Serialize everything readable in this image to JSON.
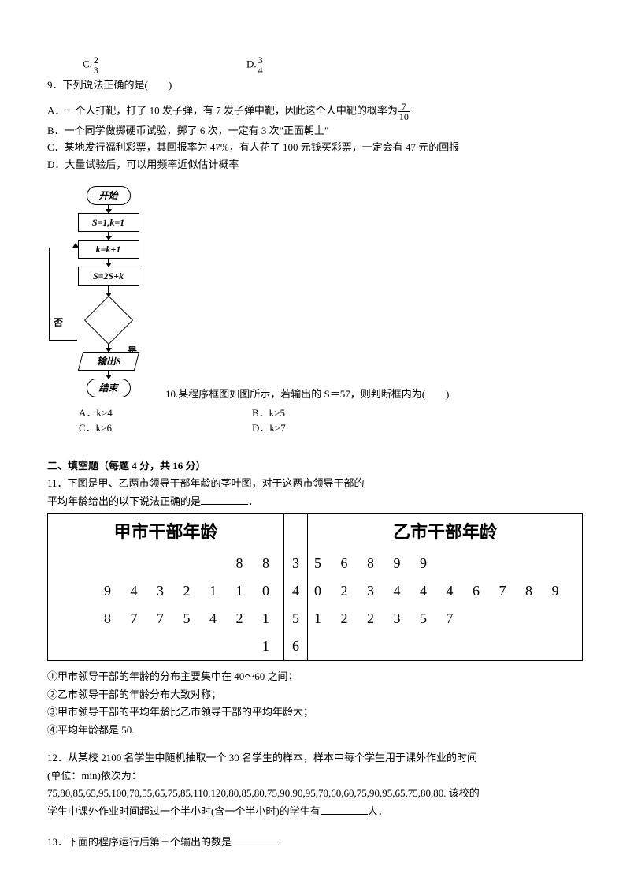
{
  "q8": {
    "opt_c_prefix": "C.",
    "opt_c_num": "2",
    "opt_c_den": "3",
    "opt_d_prefix": "D.",
    "opt_d_num": "3",
    "opt_d_den": "4"
  },
  "q9": {
    "stem": "9．下列说法正确的是(　　)",
    "a_prefix": "A．",
    "a_text1": "一个人打靶，打了 10 发子弹，有 7 发子弹中靶，因此这个人中靶的概率为",
    "a_num": "7",
    "a_den": "10",
    "b": "B．一个同学做掷硬币试验，掷了 6 次，一定有 3 次\"正面朝上\"",
    "c": "C．某地发行福利彩票，其回报率为 47%，有人花了 100 元钱买彩票，一定会有 47 元的回报",
    "d": "D．大量试验后，可以用频率近似估计概率"
  },
  "flowchart": {
    "start": "开始",
    "init": "S=1,k=1",
    "step1": "k=k+1",
    "step2": "S=2S+k",
    "no": "否",
    "yes": "是",
    "output": "输出S",
    "end": "结束"
  },
  "q10": {
    "stem": "10.某程序框图如图所示，若输出的 S＝57，则判断框内为(　　)",
    "a": "A．k>4",
    "b": "B．k>5",
    "c": "C．k>6",
    "d": "D．k>7"
  },
  "section2": "二、填空题（每题 4 分，共 16 分）",
  "q11": {
    "line1": "11．下图是甲、乙两市领导干部年龄的茎叶图，对于这两市领导干部的",
    "line2_pre": "平均年龄给出的以下说法正确的是",
    "line2_post": "．",
    "hdr_left": "甲市干部年龄",
    "hdr_right": "乙市干部年龄",
    "rows": [
      {
        "left": "8 8",
        "stem": "3",
        "right": "5 6 8 9 9"
      },
      {
        "left": "9 4 3 2 1 1 0",
        "stem": "4",
        "right": "0 2 3 4 4 4 6 7 8 9"
      },
      {
        "left": "8 7 7 5 4 2 1",
        "stem": "5",
        "right": "1 2 2 3 5 7"
      },
      {
        "left": "1",
        "stem": "6",
        "right": ""
      }
    ],
    "s1": "①甲市领导干部的年龄的分布主要集中在 40～60 之间；",
    "s2": "②乙市领导干部的年龄分布大致对称；",
    "s3": "③甲市领导干部的平均年龄比乙市领导干部的平均年龄大；",
    "s4": "④平均年龄都是 50."
  },
  "q12": {
    "line1": "12．从某校 2100 名学生中随机抽取一个 30 名学生的样本，样本中每个学生用于课外作业的时间",
    "line2": "(单位：min)依次为：",
    "data": "75,80,85,65,95,100,70,55,65,75,85,110,120,80,85,80,75,90,90,95,70,60,60,75,90,95,65,75,80,80. 该校的",
    "tail_pre": "学生中课外作业时间超过一个半小时(含一个半小时)的学生有",
    "tail_post": "人．"
  },
  "q13": {
    "pre": "13．下面的程序运行后第三个输出的数是"
  }
}
